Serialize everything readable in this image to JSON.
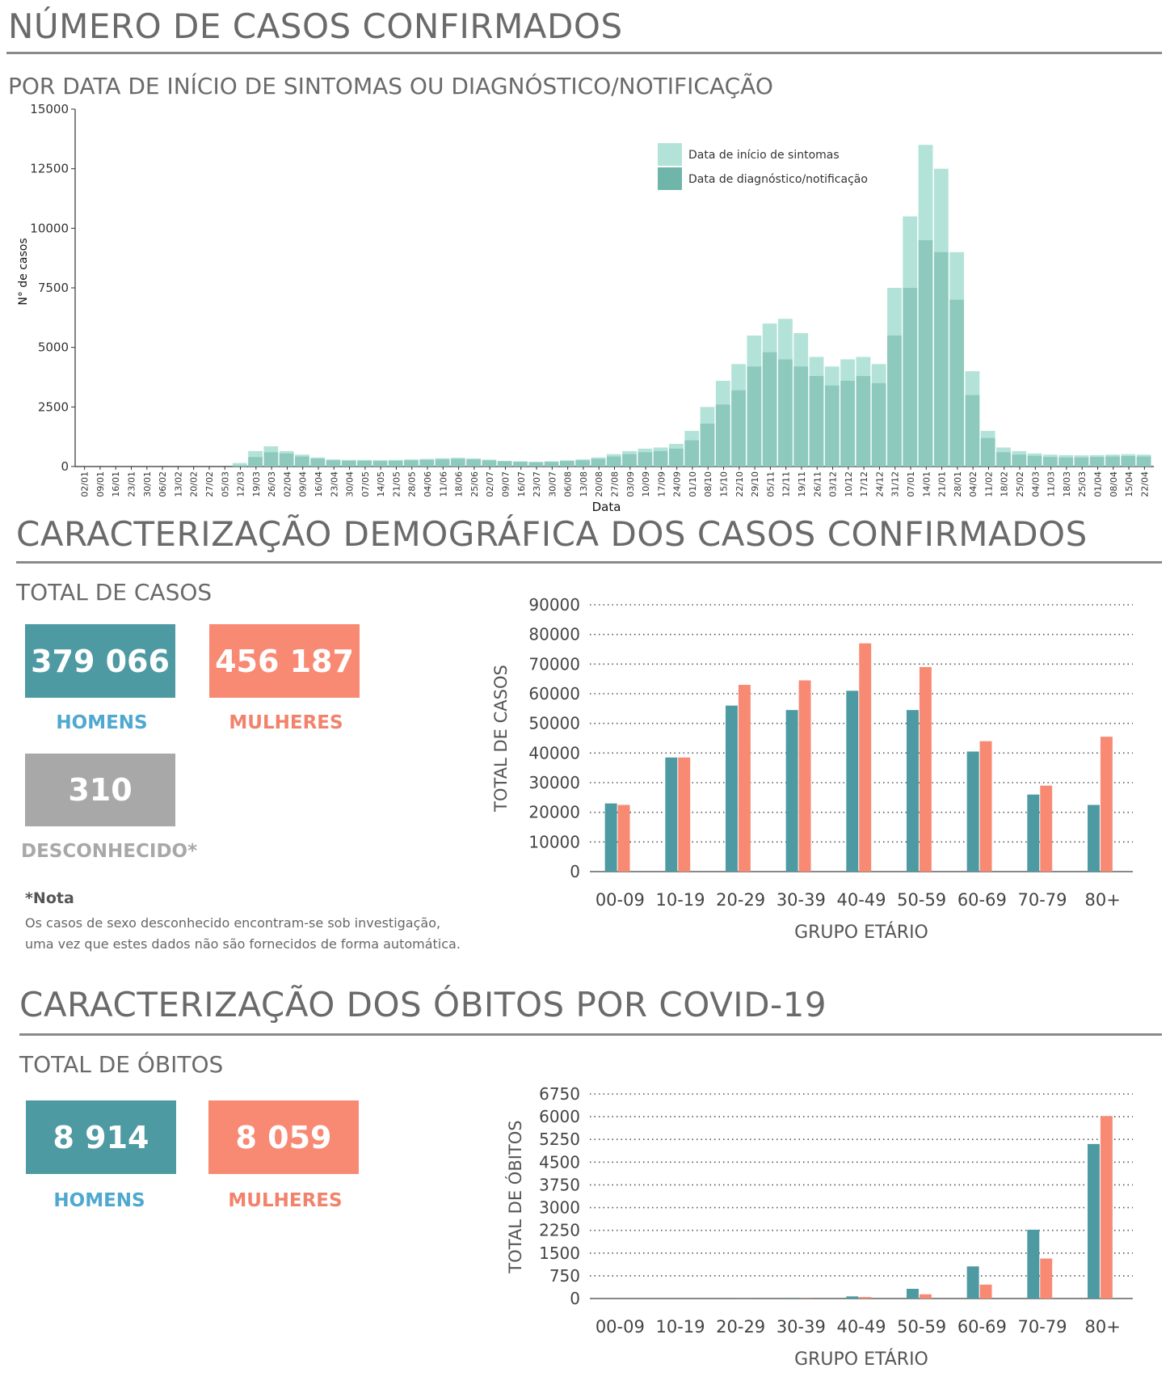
{
  "colors": {
    "men": "#4e9aa2",
    "women": "#f88a74",
    "unknown": "#a8a8a8",
    "men_label": "#4fa8cf",
    "women_label": "#f2826c",
    "unknown_label": "#a8a8a8",
    "symptom_onset": "#b3e3d8",
    "diagnosis": "#70b5aa"
  },
  "section1": {
    "title": "NÚMERO DE CASOS CONFIRMADOS",
    "subtitle": "POR DATA DE INÍCIO DE SINTOMAS OU DIAGNÓSTICO/NOTIFICAÇÃO"
  },
  "section2": {
    "title": "CARACTERIZAÇÃO DEMOGRÁFICA DOS CASOS CONFIRMADOS",
    "subtitle": "TOTAL DE CASOS",
    "men_value": "379 066",
    "men_label": "HOMENS",
    "women_value": "456 187",
    "women_label": "MULHERES",
    "unknown_value": "310",
    "unknown_label": "DESCONHECIDO*",
    "note_title": "*Nota",
    "note_line1": "Os casos de sexo desconhecido encontram-se sob investigação,",
    "note_line2": "uma vez que estes dados não são fornecidos de forma automática."
  },
  "section3": {
    "title": "CARACTERIZAÇÃO DOS ÓBITOS POR COVID-19",
    "subtitle": "TOTAL DE ÓBITOS",
    "men_value": "8 914",
    "men_label": "HOMENS",
    "women_value": "8 059",
    "women_label": "MULHERES"
  },
  "chart_data": [
    {
      "type": "bar",
      "xlabel": "Data",
      "ylabel": "N° de casos",
      "ylim": [
        0,
        15000
      ],
      "yticks": [
        "0",
        "2500",
        "5000",
        "7500",
        "10000",
        "12500",
        "15000"
      ],
      "legend_position": "top-right",
      "legend": [
        "Data de início de sintomas",
        "Data de diagnóstico/notificação"
      ],
      "x_ticks": [
        "02/01",
        "09/01",
        "16/01",
        "23/01",
        "30/01",
        "06/02",
        "13/02",
        "20/02",
        "27/02",
        "05/03",
        "12/03",
        "19/03",
        "26/03",
        "02/04",
        "09/04",
        "16/04",
        "23/04",
        "30/04",
        "07/05",
        "14/05",
        "21/05",
        "28/05",
        "04/06",
        "11/06",
        "18/06",
        "25/06",
        "02/07",
        "09/07",
        "16/07",
        "23/07",
        "30/07",
        "06/08",
        "13/08",
        "20/08",
        "27/08",
        "03/09",
        "10/09",
        "17/09",
        "24/09",
        "01/10",
        "08/10",
        "15/10",
        "22/10",
        "29/10",
        "05/11",
        "12/11",
        "19/11",
        "26/11",
        "03/12",
        "10/12",
        "17/12",
        "24/12",
        "31/12",
        "07/01",
        "14/01",
        "21/01",
        "28/01",
        "04/02",
        "11/02",
        "18/02",
        "25/02",
        "04/03",
        "11/03",
        "18/03",
        "25/03",
        "01/04",
        "08/04",
        "15/04",
        "22/04"
      ],
      "series": [
        {
          "name": "Data de início de sintomas",
          "values": [
            0,
            0,
            0,
            0,
            0,
            0,
            0,
            0,
            0,
            0,
            150,
            650,
            850,
            650,
            500,
            380,
            300,
            280,
            280,
            270,
            280,
            300,
            320,
            350,
            370,
            340,
            290,
            240,
            220,
            200,
            220,
            260,
            300,
            380,
            520,
            650,
            750,
            800,
            950,
            1500,
            2500,
            3600,
            4300,
            5500,
            6000,
            6200,
            5600,
            4600,
            4200,
            4500,
            4600,
            4300,
            7500,
            10500,
            13500,
            12500,
            9000,
            4000,
            1500,
            800,
            650,
            550,
            500,
            480,
            470,
            480,
            500,
            520,
            500
          ]
        },
        {
          "name": "Data de diagnóstico/notificação",
          "values": [
            0,
            0,
            0,
            0,
            0,
            0,
            0,
            0,
            0,
            0,
            50,
            400,
            600,
            550,
            420,
            330,
            260,
            240,
            240,
            230,
            240,
            260,
            280,
            300,
            320,
            300,
            260,
            220,
            200,
            180,
            200,
            230,
            260,
            320,
            420,
            520,
            600,
            650,
            750,
            1100,
            1800,
            2600,
            3200,
            4200,
            4800,
            4500,
            4200,
            3800,
            3400,
            3600,
            3800,
            3500,
            5500,
            7500,
            9500,
            9000,
            7000,
            3000,
            1200,
            600,
            500,
            450,
            400,
            380,
            380,
            400,
            420,
            440,
            420
          ]
        }
      ]
    },
    {
      "type": "bar",
      "xlabel": "GRUPO ETÁRIO",
      "ylabel": "TOTAL DE CASOS",
      "ylim": [
        0,
        90000
      ],
      "yticks": [
        "0",
        "10000",
        "20000",
        "30000",
        "40000",
        "50000",
        "60000",
        "70000",
        "80000",
        "90000"
      ],
      "grid": true,
      "categories": [
        "00-09",
        "10-19",
        "20-29",
        "30-39",
        "40-49",
        "50-59",
        "60-69",
        "70-79",
        "80+"
      ],
      "series": [
        {
          "values": [
            23000,
            38500,
            56000,
            54500,
            61000,
            54500,
            40500,
            26000,
            22500
          ]
        },
        {
          "values": [
            22500,
            38500,
            63000,
            64500,
            77000,
            69000,
            44000,
            29000,
            45500
          ]
        }
      ]
    },
    {
      "type": "bar",
      "xlabel": "GRUPO ETÁRIO",
      "ylabel": "TOTAL DE ÓBITOS",
      "ylim": [
        0,
        6750
      ],
      "yticks": [
        "0",
        "750",
        "1500",
        "2250",
        "3000",
        "3750",
        "4500",
        "5250",
        "6000",
        "6750"
      ],
      "grid": true,
      "categories": [
        "00-09",
        "10-19",
        "20-29",
        "30-39",
        "40-49",
        "50-59",
        "60-69",
        "70-79",
        "80+"
      ],
      "series": [
        {
          "values": [
            0,
            0,
            5,
            12,
            70,
            320,
            1060,
            2270,
            5100
          ]
        },
        {
          "values": [
            0,
            0,
            3,
            8,
            50,
            140,
            460,
            1320,
            6020
          ]
        }
      ]
    }
  ]
}
